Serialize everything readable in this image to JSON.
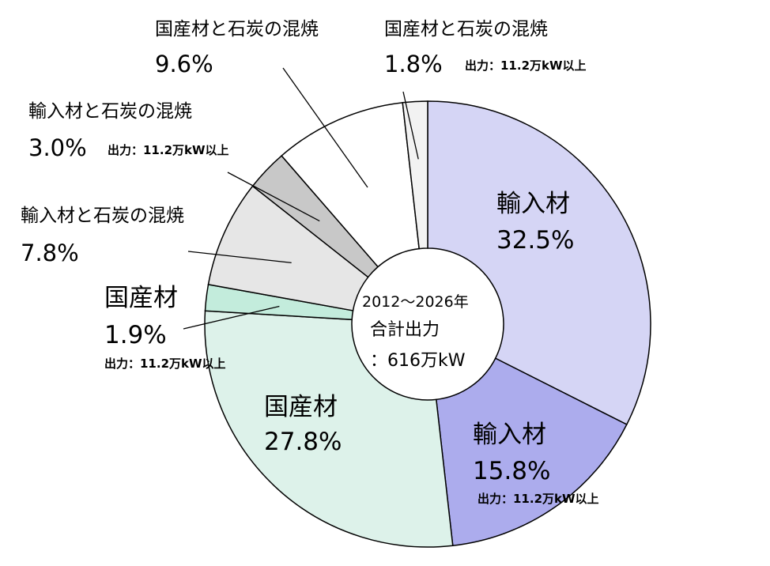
{
  "chart_data": {
    "type": "pie",
    "donut": true,
    "center_text": {
      "line1": "2012～2026年",
      "line2": "合計出力",
      "line3": "：616万kW"
    },
    "slices": [
      {
        "name": "輸入材",
        "value": 32.5,
        "label": "32.5%",
        "note": "",
        "color": "#d5d5f5"
      },
      {
        "name": "輸入材",
        "value": 15.8,
        "label": "15.8%",
        "note": "出力：11.2万kW以上",
        "color": "#acaced"
      },
      {
        "name": "国産材",
        "value": 27.8,
        "label": "27.8%",
        "note": "",
        "color": "#ddf2ea"
      },
      {
        "name": "国産材",
        "value": 1.9,
        "label": "1.9%",
        "note": "出力：11.2万kW以上",
        "color": "#c3ecdc"
      },
      {
        "name": "輸入材と石炭の混焼",
        "value": 7.8,
        "label": "7.8%",
        "note": "",
        "color": "#e6e6e6"
      },
      {
        "name": "輸入材と石炭の混焼",
        "value": 3.0,
        "label": "3.0%",
        "note": "出力：11.2万kW以上",
        "color": "#c8c8c8"
      },
      {
        "name": "国産材と石炭の混焼",
        "value": 9.6,
        "label": "9.6%",
        "note": "",
        "color": "#ffffff"
      },
      {
        "name": "国産材と石炭の混焼",
        "value": 1.8,
        "label": "1.8%",
        "note": "出力：11.2万kW以上",
        "color": "#f2f2f2"
      }
    ]
  }
}
